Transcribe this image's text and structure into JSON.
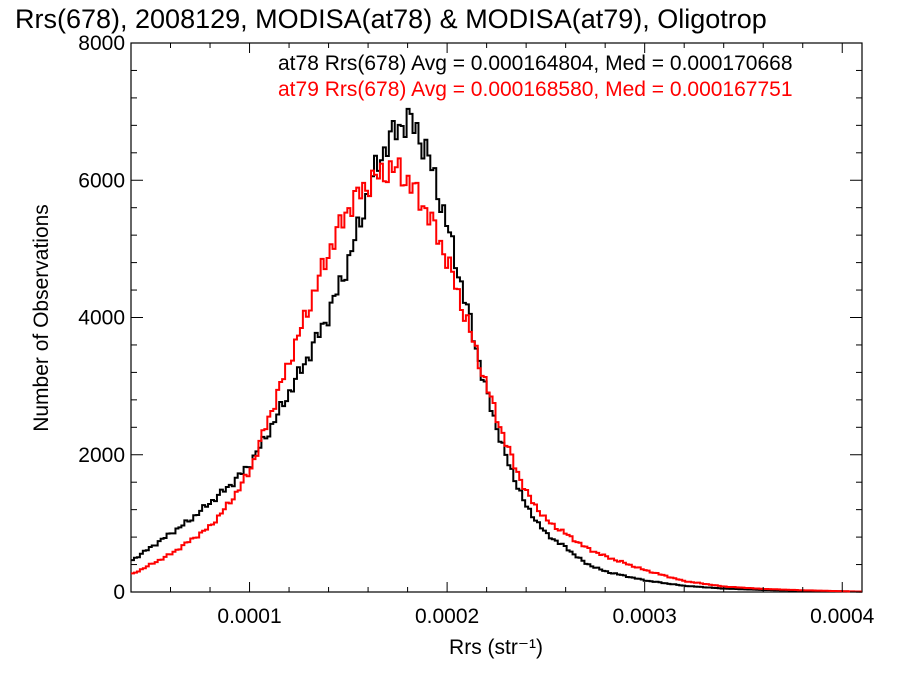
{
  "chart_data": {
    "type": "line",
    "title": "Rrs(678), 2008129, MODISA(at78) & MODISA(at79), Oligotrop",
    "xlabel": "Rrs (str⁻¹)",
    "ylabel": "Number of Observations",
    "xlim": [
      4e-05,
      0.00041
    ],
    "ylim": [
      0,
      8000
    ],
    "x_ticks": [
      0.0001,
      0.0002,
      0.0003,
      0.0004
    ],
    "x_tick_labels": [
      "0.0001",
      "0.0002",
      "0.0003",
      "0.0004"
    ],
    "y_ticks": [
      0,
      2000,
      4000,
      6000,
      8000
    ],
    "y_tick_labels": [
      "0",
      "2000",
      "4000",
      "6000",
      "8000"
    ],
    "grid": false,
    "legend_placement": "top-right",
    "annotations": [
      {
        "text": "at78 Rrs(678) Avg = 0.000164804, Med = 0.000170668",
        "color": "#000000"
      },
      {
        "text": "at79 Rrs(678) Avg = 0.000168580, Med = 0.000167751",
        "color": "#ff0000"
      }
    ],
    "series": [
      {
        "color": "#000000",
        "x": [
          4e-05,
          5e-05,
          6e-05,
          7e-05,
          8e-05,
          9e-05,
          0.0001,
          0.00011,
          0.00012,
          0.00013,
          0.00014,
          0.00015,
          0.00016,
          0.000165,
          0.00017,
          0.000175,
          0.00018,
          0.000185,
          0.00019,
          0.0002,
          0.00021,
          0.00022,
          0.00023,
          0.00024,
          0.00025,
          0.00026,
          0.00027,
          0.00028,
          0.0003,
          0.00032,
          0.00034,
          0.00036,
          0.00038,
          0.0004,
          0.00041
        ],
        "y": [
          450,
          650,
          850,
          1050,
          1300,
          1550,
          1850,
          2350,
          2900,
          3450,
          4050,
          4800,
          5800,
          6250,
          6550,
          6750,
          6900,
          6700,
          6400,
          5350,
          4150,
          2900,
          1950,
          1250,
          850,
          650,
          420,
          300,
          170,
          90,
          50,
          30,
          18,
          10,
          5
        ]
      },
      {
        "color": "#ff0000",
        "x": [
          4e-05,
          5e-05,
          6e-05,
          7e-05,
          8e-05,
          9e-05,
          0.0001,
          0.00011,
          0.00012,
          0.00013,
          0.00014,
          0.00015,
          0.00016,
          0.000165,
          0.00017,
          0.000175,
          0.00018,
          0.00019,
          0.0002,
          0.00021,
          0.00022,
          0.00023,
          0.00024,
          0.00025,
          0.00026,
          0.00027,
          0.00028,
          0.0003,
          0.00032,
          0.00034,
          0.00036,
          0.00038,
          0.0004,
          0.00041
        ],
        "y": [
          250,
          400,
          550,
          750,
          950,
          1300,
          1750,
          2550,
          3350,
          4150,
          4950,
          5600,
          5950,
          6050,
          6150,
          6150,
          6000,
          5550,
          4850,
          3950,
          3000,
          2150,
          1450,
          1050,
          850,
          650,
          520,
          320,
          160,
          80,
          45,
          25,
          12,
          6
        ]
      }
    ]
  }
}
